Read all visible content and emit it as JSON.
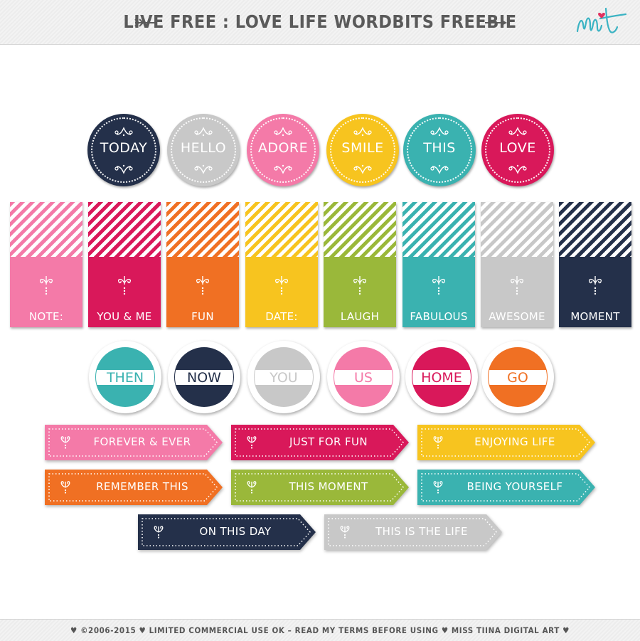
{
  "header": {
    "title": "LIVE FREE : LOVE LIFE WORDBITS FREEBIE",
    "arrow_left_icon": "feather-arrow-icon",
    "arrow_right_icon": "arrow-right-icon",
    "logo_icon": "mt-logo-icon",
    "logo_colors": [
      "#3bb3c3",
      "#e0325f"
    ]
  },
  "circles": [
    {
      "label": "TODAY",
      "color": "#24304a"
    },
    {
      "label": "HELLO",
      "color": "#c8c8c8"
    },
    {
      "label": "ADORE",
      "color": "#f47aa8"
    },
    {
      "label": "SMILE",
      "color": "#f7c41f"
    },
    {
      "label": "THIS",
      "color": "#3ab2b0"
    },
    {
      "label": "LOVE",
      "color": "#d9185a"
    }
  ],
  "tags": [
    {
      "label": "NOTE:",
      "color": "#f47aa8"
    },
    {
      "label": "YOU & ME",
      "color": "#d9185a"
    },
    {
      "label": "FUN",
      "color": "#f07023"
    },
    {
      "label": "DATE:",
      "color": "#f7c41f"
    },
    {
      "label": "LAUGH",
      "color": "#9ab83a"
    },
    {
      "label": "FABULOUS",
      "color": "#3ab2b0"
    },
    {
      "label": "AWESOME",
      "color": "#c8c8c8"
    },
    {
      "label": "MOMENT",
      "color": "#24304a"
    }
  ],
  "badges": [
    {
      "label": "THEN",
      "color": "#3ab2b0"
    },
    {
      "label": "NOW",
      "color": "#24304a"
    },
    {
      "label": "YOU",
      "color": "#c8c8c8"
    },
    {
      "label": "US",
      "color": "#f47aa8"
    },
    {
      "label": "HOME",
      "color": "#d9185a"
    },
    {
      "label": "GO",
      "color": "#f07023"
    }
  ],
  "arrow_tags": [
    {
      "label": "FOREVER & EVER",
      "color": "#f47aa8"
    },
    {
      "label": "JUST FOR FUN",
      "color": "#d9185a"
    },
    {
      "label": "ENJOYING LIFE",
      "color": "#f7c41f"
    },
    {
      "label": "REMEMBER THIS",
      "color": "#f07023"
    },
    {
      "label": "THIS MOMENT",
      "color": "#9ab83a"
    },
    {
      "label": "BEING YOURSELF",
      "color": "#3ab2b0"
    },
    {
      "label": "ON THIS DAY",
      "color": "#24304a"
    },
    {
      "label": "THIS IS THE LIFE",
      "color": "#c8c8c8"
    }
  ],
  "footer": {
    "text": "♥  ©2006-2015  ♥  LIMITED COMMERCIAL USE OK – READ MY TERMS BEFORE USING  ♥  MISS TIINA DIGITAL ART  ♥"
  }
}
